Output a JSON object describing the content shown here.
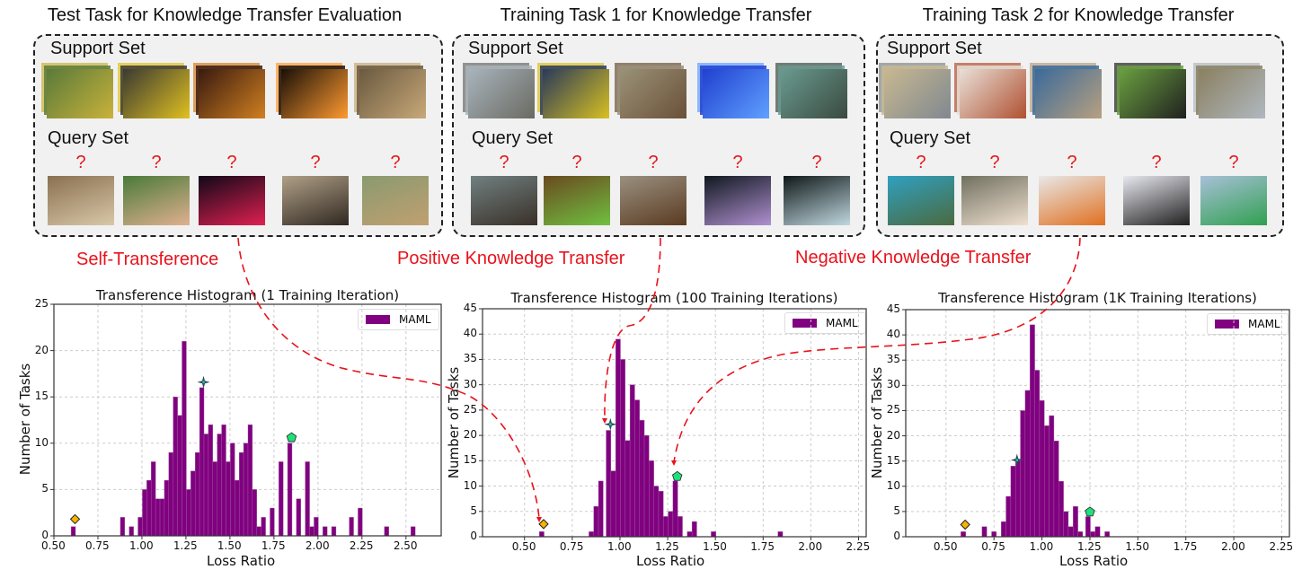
{
  "tasks": [
    {
      "title": "Test Task for Knowledge Transfer Evaluation",
      "support_label": "Support Set",
      "query_label": "Query Set",
      "support_images": [
        "bird in yellow flowers",
        "toucan",
        "theater stage",
        "concert lights",
        "lioness"
      ],
      "query_images": [
        "bird feeder",
        "boy with toucan",
        "red mouse-ear stage",
        "performers",
        "lioness sitting"
      ],
      "query_mark": "?"
    },
    {
      "title": "Training Task 1 for Knowledge Transfer",
      "support_label": "Support Set",
      "query_label": "Query Set",
      "support_images": [
        "geese on water",
        "yellow snake",
        "spider",
        "blue jellyfish",
        "microscopic organism"
      ],
      "query_images": [
        "goose",
        "green snake",
        "harvestman spider",
        "jellyfish",
        "microscopic organism"
      ],
      "query_mark": "?"
    },
    {
      "title": "Training Task 2 for Knowledge Transfer",
      "support_label": "Support Set",
      "query_label": "Query Set",
      "support_images": [
        "cliff beach",
        "hot dog",
        "king crab",
        "black dog",
        "road sign"
      ],
      "query_images": [
        "sea cliff",
        "woman eating",
        "crab fisherman",
        "dogs in snow",
        "street sign"
      ],
      "query_mark": "?"
    }
  ],
  "transfer_labels": {
    "self": "Self-Transference",
    "positive": "Positive Knowledge Transfer",
    "negative": "Negative Knowledge Transfer"
  },
  "colors": {
    "bar": "#800080",
    "arrow": "#e8121b",
    "diamond": "#f5b400",
    "pentagon": "#1fe07a",
    "star": "#2a4a5a"
  },
  "chart_data": [
    {
      "type": "bar",
      "title": "Transference Histogram (1 Training Iteration)",
      "xlabel": "Loss Ratio",
      "ylabel": "Number of Tasks",
      "legend": [
        "MAML"
      ],
      "xlim": [
        0.5,
        2.7
      ],
      "ylim": [
        0,
        25
      ],
      "xticks": [
        "0.50",
        "0.75",
        "1.00",
        "1.25",
        "1.50",
        "1.75",
        "2.00",
        "2.25",
        "2.50"
      ],
      "yticks": [
        "0",
        "5",
        "10",
        "15",
        "20",
        "25"
      ],
      "bin_width": 0.025,
      "bins": [
        [
          0.61,
          1
        ],
        [
          0.89,
          2
        ],
        [
          0.94,
          1
        ],
        [
          0.99,
          2
        ],
        [
          1.015,
          5
        ],
        [
          1.04,
          6
        ],
        [
          1.065,
          8
        ],
        [
          1.09,
          4
        ],
        [
          1.115,
          4
        ],
        [
          1.14,
          6
        ],
        [
          1.165,
          9
        ],
        [
          1.19,
          15
        ],
        [
          1.215,
          13
        ],
        [
          1.24,
          21
        ],
        [
          1.265,
          5
        ],
        [
          1.29,
          7
        ],
        [
          1.315,
          9
        ],
        [
          1.34,
          16
        ],
        [
          1.365,
          11
        ],
        [
          1.39,
          12
        ],
        [
          1.415,
          8
        ],
        [
          1.44,
          11
        ],
        [
          1.465,
          12
        ],
        [
          1.49,
          8
        ],
        [
          1.515,
          10
        ],
        [
          1.54,
          6
        ],
        [
          1.565,
          9
        ],
        [
          1.59,
          10
        ],
        [
          1.615,
          12
        ],
        [
          1.64,
          5
        ],
        [
          1.665,
          1
        ],
        [
          1.69,
          2
        ],
        [
          1.74,
          3
        ],
        [
          1.79,
          8
        ],
        [
          1.84,
          10
        ],
        [
          1.89,
          4
        ],
        [
          1.94,
          8
        ],
        [
          1.965,
          1
        ],
        [
          1.99,
          2
        ],
        [
          2.04,
          1
        ],
        [
          2.09,
          1
        ],
        [
          2.19,
          2
        ],
        [
          2.24,
          3
        ],
        [
          2.39,
          1
        ],
        [
          2.54,
          1
        ]
      ],
      "markers": [
        {
          "shape": "diamond",
          "x": 0.62,
          "y": 1.8
        },
        {
          "shape": "star",
          "x": 1.35,
          "y": 16.6
        },
        {
          "shape": "pentagon",
          "x": 1.85,
          "y": 10.6
        }
      ]
    },
    {
      "type": "bar",
      "title": "Transference Histogram (100 Training Iterations)",
      "xlabel": "Loss Ratio",
      "ylabel": "Number of Tasks",
      "legend": [
        "MAML"
      ],
      "xlim": [
        0.28,
        2.29
      ],
      "ylim": [
        0,
        45
      ],
      "xticks": [
        "0.50",
        "0.75",
        "1.00",
        "1.25",
        "1.50",
        "1.75",
        "2.00",
        "2.25"
      ],
      "yticks": [
        "0",
        "5",
        "10",
        "15",
        "20",
        "25",
        "30",
        "35",
        "40",
        "45"
      ],
      "bin_width": 0.025,
      "bins": [
        [
          0.59,
          1
        ],
        [
          0.85,
          1
        ],
        [
          0.875,
          6
        ],
        [
          0.9,
          11
        ],
        [
          0.94,
          21
        ],
        [
          0.965,
          13
        ],
        [
          0.99,
          39
        ],
        [
          1.015,
          35
        ],
        [
          1.04,
          19
        ],
        [
          1.065,
          30
        ],
        [
          1.09,
          27
        ],
        [
          1.115,
          23
        ],
        [
          1.14,
          20
        ],
        [
          1.165,
          15
        ],
        [
          1.19,
          10
        ],
        [
          1.215,
          9
        ],
        [
          1.24,
          4
        ],
        [
          1.265,
          5
        ],
        [
          1.29,
          11
        ],
        [
          1.315,
          4
        ],
        [
          1.365,
          1
        ],
        [
          1.39,
          3
        ],
        [
          1.49,
          1
        ],
        [
          1.84,
          1
        ]
      ],
      "markers": [
        {
          "shape": "diamond",
          "x": 0.6,
          "y": 2.5
        },
        {
          "shape": "star",
          "x": 0.95,
          "y": 22.2
        },
        {
          "shape": "pentagon",
          "x": 1.3,
          "y": 11.9
        }
      ]
    },
    {
      "type": "bar",
      "title": "Transference Histogram (1K Training Iterations)",
      "xlabel": "Loss Ratio",
      "ylabel": "Number of Tasks",
      "legend": [
        "MAML"
      ],
      "xlim": [
        0.29,
        2.29
      ],
      "ylim": [
        0,
        45
      ],
      "xticks": [
        "0.50",
        "0.75",
        "1.00",
        "1.25",
        "1.50",
        "1.75",
        "2.00",
        "2.25"
      ],
      "yticks": [
        "0",
        "5",
        "10",
        "15",
        "20",
        "25",
        "30",
        "35",
        "40",
        "45"
      ],
      "bin_width": 0.025,
      "bins": [
        [
          0.59,
          1
        ],
        [
          0.7,
          2
        ],
        [
          0.75,
          1
        ],
        [
          0.8,
          3
        ],
        [
          0.825,
          8
        ],
        [
          0.85,
          14
        ],
        [
          0.875,
          15
        ],
        [
          0.9,
          25
        ],
        [
          0.925,
          29
        ],
        [
          0.95,
          42
        ],
        [
          0.975,
          33
        ],
        [
          1.0,
          27
        ],
        [
          1.025,
          22
        ],
        [
          1.05,
          24
        ],
        [
          1.075,
          19
        ],
        [
          1.1,
          11
        ],
        [
          1.125,
          5
        ],
        [
          1.15,
          2
        ],
        [
          1.175,
          6
        ],
        [
          1.2,
          1
        ],
        [
          1.24,
          4
        ],
        [
          1.265,
          1
        ],
        [
          1.29,
          2
        ],
        [
          1.34,
          1
        ]
      ],
      "markers": [
        {
          "shape": "diamond",
          "x": 0.6,
          "y": 2.4
        },
        {
          "shape": "star",
          "x": 0.87,
          "y": 15.2
        },
        {
          "shape": "pentagon",
          "x": 1.25,
          "y": 4.9
        }
      ]
    }
  ]
}
